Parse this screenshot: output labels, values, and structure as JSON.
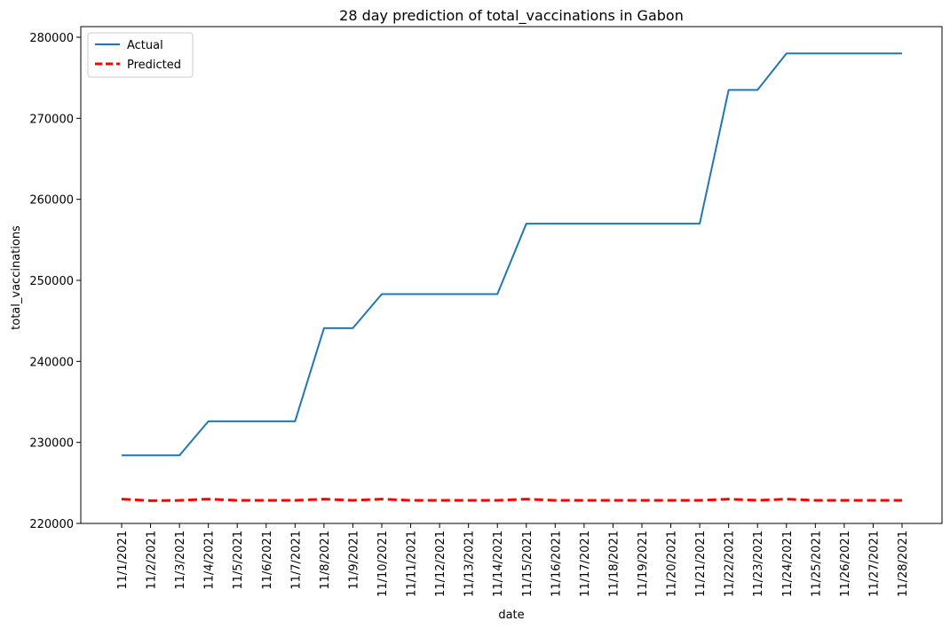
{
  "chart_data": {
    "type": "line",
    "title": "28 day prediction of total_vaccinations in Gabon",
    "xlabel": "date",
    "ylabel": "total_vaccinations",
    "ylim": [
      220000,
      280000
    ],
    "yticks": [
      220000,
      230000,
      240000,
      250000,
      260000,
      270000,
      280000
    ],
    "grid": false,
    "legend_position": "top-left",
    "categories": [
      "11/1/2021",
      "11/2/2021",
      "11/3/2021",
      "11/4/2021",
      "11/5/2021",
      "11/6/2021",
      "11/7/2021",
      "11/8/2021",
      "11/9/2021",
      "11/10/2021",
      "11/11/2021",
      "11/12/2021",
      "11/13/2021",
      "11/14/2021",
      "11/15/2021",
      "11/16/2021",
      "11/17/2021",
      "11/18/2021",
      "11/19/2021",
      "11/20/2021",
      "11/21/2021",
      "11/22/2021",
      "11/23/2021",
      "11/24/2021",
      "11/25/2021",
      "11/26/2021",
      "11/27/2021",
      "11/28/2021"
    ],
    "series": [
      {
        "name": "Actual",
        "color": "#1f77b4",
        "style": "solid",
        "values": [
          228400,
          228400,
          228400,
          232600,
          232600,
          232600,
          232600,
          244100,
          244100,
          248300,
          248300,
          248300,
          248300,
          248300,
          257000,
          257000,
          257000,
          257000,
          257000,
          257000,
          257000,
          273500,
          273500,
          278000,
          278000,
          278000,
          278000,
          278000
        ]
      },
      {
        "name": "Predicted",
        "color": "#ff0000",
        "style": "dashed",
        "values": [
          223000,
          222800,
          222850,
          223000,
          222850,
          222850,
          222850,
          223000,
          222850,
          223000,
          222850,
          222850,
          222850,
          222850,
          223000,
          222850,
          222850,
          222850,
          222850,
          222850,
          222850,
          223000,
          222850,
          223000,
          222850,
          222850,
          222850,
          222850
        ]
      }
    ]
  }
}
